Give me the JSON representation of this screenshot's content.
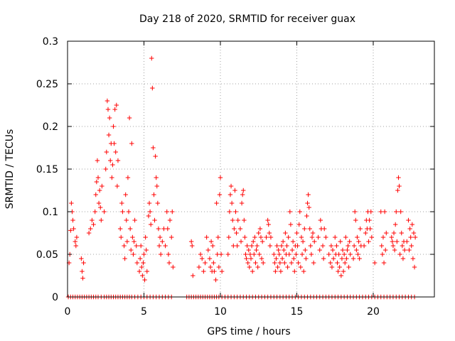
{
  "chart_data": {
    "type": "scatter",
    "title": "Day 218 of 2020, SRMTID for receiver guax",
    "xlabel": "GPS time / hours",
    "ylabel": "SRMTID / TECUs",
    "xlim": [
      0,
      24
    ],
    "ylim": [
      0,
      0.3
    ],
    "grid": true,
    "marker": "+",
    "color": "#ff0000",
    "x_ticks": [
      {
        "value": 0,
        "label": "0"
      },
      {
        "value": 5,
        "label": "5"
      },
      {
        "value": 10,
        "label": "10"
      },
      {
        "value": 15,
        "label": "15"
      },
      {
        "value": 20,
        "label": "20"
      }
    ],
    "y_ticks": [
      {
        "value": 0,
        "label": "0"
      },
      {
        "value": 0.05,
        "label": "0.05"
      },
      {
        "value": 0.1,
        "label": "0.1"
      },
      {
        "value": 0.15,
        "label": "0.15"
      },
      {
        "value": 0.2,
        "label": "0.2"
      },
      {
        "value": 0.25,
        "label": "0.25"
      },
      {
        "value": 0.3,
        "label": "0.3"
      }
    ],
    "points": [
      [
        0.1,
        0.04
      ],
      [
        0.15,
        0.05
      ],
      [
        0.2,
        0.078
      ],
      [
        0.25,
        0.11
      ],
      [
        0.3,
        0.1
      ],
      [
        0.35,
        0.09
      ],
      [
        0.4,
        0.08
      ],
      [
        0.5,
        0.065
      ],
      [
        0.55,
        0.06
      ],
      [
        0.6,
        0.07
      ],
      [
        0.9,
        0.045
      ],
      [
        0.95,
        0.03
      ],
      [
        1.0,
        0.022
      ],
      [
        1.05,
        0.04
      ],
      [
        1.4,
        0.075
      ],
      [
        1.5,
        0.08
      ],
      [
        1.6,
        0.09
      ],
      [
        1.7,
        0.085
      ],
      [
        1.8,
        0.1
      ],
      [
        1.85,
        0.12
      ],
      [
        1.9,
        0.135
      ],
      [
        1.95,
        0.16
      ],
      [
        2.0,
        0.14
      ],
      [
        2.05,
        0.11
      ],
      [
        2.1,
        0.125
      ],
      [
        2.15,
        0.105
      ],
      [
        2.2,
        0.09
      ],
      [
        2.25,
        0.13
      ],
      [
        2.4,
        0.1
      ],
      [
        2.5,
        0.15
      ],
      [
        2.55,
        0.17
      ],
      [
        2.6,
        0.23
      ],
      [
        2.65,
        0.22
      ],
      [
        2.7,
        0.19
      ],
      [
        2.75,
        0.21
      ],
      [
        2.8,
        0.16
      ],
      [
        2.85,
        0.18
      ],
      [
        2.9,
        0.14
      ],
      [
        2.95,
        0.155
      ],
      [
        3.0,
        0.2
      ],
      [
        3.05,
        0.18
      ],
      [
        3.1,
        0.22
      ],
      [
        3.15,
        0.17
      ],
      [
        3.2,
        0.225
      ],
      [
        3.25,
        0.13
      ],
      [
        3.3,
        0.16
      ],
      [
        3.45,
        0.08
      ],
      [
        3.5,
        0.07
      ],
      [
        3.55,
        0.11
      ],
      [
        3.6,
        0.1
      ],
      [
        3.7,
        0.06
      ],
      [
        3.75,
        0.045
      ],
      [
        3.8,
        0.12
      ],
      [
        3.85,
        0.09
      ],
      [
        3.9,
        0.065
      ],
      [
        3.95,
        0.14
      ],
      [
        4.0,
        0.1
      ],
      [
        4.05,
        0.21
      ],
      [
        4.1,
        0.08
      ],
      [
        4.15,
        0.055
      ],
      [
        4.2,
        0.18
      ],
      [
        4.25,
        0.07
      ],
      [
        4.3,
        0.05
      ],
      [
        4.35,
        0.065
      ],
      [
        4.4,
        0.09
      ],
      [
        4.5,
        0.06
      ],
      [
        4.55,
        0.04
      ],
      [
        4.7,
        0.03
      ],
      [
        4.75,
        0.045
      ],
      [
        4.8,
        0.06
      ],
      [
        4.85,
        0.035
      ],
      [
        4.9,
        0.025
      ],
      [
        4.95,
        0.04
      ],
      [
        5.0,
        0.05
      ],
      [
        5.05,
        0.02
      ],
      [
        5.1,
        0.07
      ],
      [
        5.15,
        0.055
      ],
      [
        5.2,
        0.03
      ],
      [
        5.3,
        0.095
      ],
      [
        5.35,
        0.11
      ],
      [
        5.4,
        0.1
      ],
      [
        5.45,
        0.085
      ],
      [
        5.5,
        0.28
      ],
      [
        5.55,
        0.245
      ],
      [
        5.6,
        0.175
      ],
      [
        5.65,
        0.12
      ],
      [
        5.7,
        0.09
      ],
      [
        5.75,
        0.165
      ],
      [
        5.8,
        0.14
      ],
      [
        5.85,
        0.13
      ],
      [
        5.9,
        0.11
      ],
      [
        5.95,
        0.08
      ],
      [
        6.0,
        0.06
      ],
      [
        6.05,
        0.07
      ],
      [
        6.1,
        0.05
      ],
      [
        6.2,
        0.065
      ],
      [
        6.3,
        0.08
      ],
      [
        6.4,
        0.06
      ],
      [
        6.5,
        0.1
      ],
      [
        6.55,
        0.08
      ],
      [
        6.6,
        0.05
      ],
      [
        6.65,
        0.04
      ],
      [
        6.7,
        0.09
      ],
      [
        6.8,
        0.07
      ],
      [
        6.85,
        0.1
      ],
      [
        6.9,
        0.035
      ],
      [
        8.1,
        0.065
      ],
      [
        8.15,
        0.06
      ],
      [
        8.2,
        0.025
      ],
      [
        8.6,
        0.035
      ],
      [
        8.7,
        0.05
      ],
      [
        8.8,
        0.045
      ],
      [
        8.9,
        0.03
      ],
      [
        9.0,
        0.04
      ],
      [
        9.1,
        0.07
      ],
      [
        9.2,
        0.055
      ],
      [
        9.3,
        0.045
      ],
      [
        9.35,
        0.035
      ],
      [
        9.4,
        0.065
      ],
      [
        9.45,
        0.03
      ],
      [
        9.5,
        0.06
      ],
      [
        9.55,
        0.04
      ],
      [
        9.6,
        0.03
      ],
      [
        9.7,
        0.02
      ],
      [
        9.75,
        0.11
      ],
      [
        9.8,
        0.05
      ],
      [
        9.85,
        0.07
      ],
      [
        9.9,
        0.035
      ],
      [
        9.95,
        0.12
      ],
      [
        10.0,
        0.14
      ],
      [
        10.05,
        0.05
      ],
      [
        10.1,
        0.03
      ],
      [
        10.5,
        0.05
      ],
      [
        10.55,
        0.07
      ],
      [
        10.6,
        0.1
      ],
      [
        10.65,
        0.12
      ],
      [
        10.7,
        0.13
      ],
      [
        10.75,
        0.11
      ],
      [
        10.8,
        0.09
      ],
      [
        10.85,
        0.06
      ],
      [
        10.9,
        0.08
      ],
      [
        10.95,
        0.125
      ],
      [
        11.0,
        0.1
      ],
      [
        11.05,
        0.075
      ],
      [
        11.1,
        0.06
      ],
      [
        11.15,
        0.09
      ],
      [
        11.3,
        0.08
      ],
      [
        11.35,
        0.065
      ],
      [
        11.4,
        0.11
      ],
      [
        11.45,
        0.12
      ],
      [
        11.5,
        0.125
      ],
      [
        11.55,
        0.09
      ],
      [
        11.6,
        0.07
      ],
      [
        11.65,
        0.05
      ],
      [
        11.7,
        0.045
      ],
      [
        11.75,
        0.06
      ],
      [
        11.8,
        0.04
      ],
      [
        11.85,
        0.055
      ],
      [
        11.9,
        0.035
      ],
      [
        11.95,
        0.05
      ],
      [
        12.0,
        0.045
      ],
      [
        12.05,
        0.06
      ],
      [
        12.1,
        0.03
      ],
      [
        12.15,
        0.065
      ],
      [
        12.2,
        0.05
      ],
      [
        12.25,
        0.07
      ],
      [
        12.3,
        0.04
      ],
      [
        12.35,
        0.055
      ],
      [
        12.4,
        0.06
      ],
      [
        12.45,
        0.035
      ],
      [
        12.5,
        0.075
      ],
      [
        12.55,
        0.05
      ],
      [
        12.6,
        0.08
      ],
      [
        12.65,
        0.07
      ],
      [
        12.7,
        0.045
      ],
      [
        12.75,
        0.065
      ],
      [
        12.8,
        0.04
      ],
      [
        13.0,
        0.07
      ],
      [
        13.1,
        0.09
      ],
      [
        13.15,
        0.085
      ],
      [
        13.2,
        0.075
      ],
      [
        13.25,
        0.06
      ],
      [
        13.3,
        0.07
      ],
      [
        13.5,
        0.05
      ],
      [
        13.55,
        0.04
      ],
      [
        13.6,
        0.03
      ],
      [
        13.65,
        0.045
      ],
      [
        13.7,
        0.06
      ],
      [
        13.75,
        0.035
      ],
      [
        13.8,
        0.055
      ],
      [
        13.85,
        0.05
      ],
      [
        13.9,
        0.04
      ],
      [
        13.95,
        0.03
      ],
      [
        14.0,
        0.06
      ],
      [
        14.05,
        0.045
      ],
      [
        14.1,
        0.065
      ],
      [
        14.15,
        0.055
      ],
      [
        14.2,
        0.04
      ],
      [
        14.25,
        0.075
      ],
      [
        14.3,
        0.05
      ],
      [
        14.35,
        0.06
      ],
      [
        14.4,
        0.035
      ],
      [
        14.45,
        0.07
      ],
      [
        14.5,
        0.05
      ],
      [
        14.55,
        0.1
      ],
      [
        14.6,
        0.085
      ],
      [
        14.65,
        0.04
      ],
      [
        14.7,
        0.055
      ],
      [
        14.75,
        0.065
      ],
      [
        14.8,
        0.045
      ],
      [
        14.85,
        0.03
      ],
      [
        14.9,
        0.06
      ],
      [
        14.95,
        0.05
      ],
      [
        15.0,
        0.075
      ],
      [
        15.05,
        0.06
      ],
      [
        15.1,
        0.04
      ],
      [
        15.15,
        0.085
      ],
      [
        15.2,
        0.1
      ],
      [
        15.25,
        0.035
      ],
      [
        15.3,
        0.07
      ],
      [
        15.35,
        0.05
      ],
      [
        15.4,
        0.065
      ],
      [
        15.45,
        0.03
      ],
      [
        15.5,
        0.08
      ],
      [
        15.55,
        0.055
      ],
      [
        15.6,
        0.045
      ],
      [
        15.65,
        0.095
      ],
      [
        15.7,
        0.11
      ],
      [
        15.75,
        0.12
      ],
      [
        15.8,
        0.105
      ],
      [
        15.85,
        0.08
      ],
      [
        15.9,
        0.06
      ],
      [
        15.95,
        0.05
      ],
      [
        16.0,
        0.07
      ],
      [
        16.05,
        0.075
      ],
      [
        16.1,
        0.04
      ],
      [
        16.15,
        0.065
      ],
      [
        16.4,
        0.07
      ],
      [
        16.5,
        0.055
      ],
      [
        16.55,
        0.09
      ],
      [
        16.6,
        0.08
      ],
      [
        16.7,
        0.06
      ],
      [
        16.75,
        0.045
      ],
      [
        16.8,
        0.08
      ],
      [
        16.9,
        0.07
      ],
      [
        17.1,
        0.05
      ],
      [
        17.2,
        0.04
      ],
      [
        17.25,
        0.06
      ],
      [
        17.3,
        0.035
      ],
      [
        17.35,
        0.055
      ],
      [
        17.4,
        0.045
      ],
      [
        17.5,
        0.07
      ],
      [
        17.55,
        0.05
      ],
      [
        17.6,
        0.06
      ],
      [
        17.65,
        0.04
      ],
      [
        17.7,
        0.03
      ],
      [
        17.75,
        0.05
      ],
      [
        17.8,
        0.035
      ],
      [
        17.85,
        0.065
      ],
      [
        17.9,
        0.025
      ],
      [
        17.95,
        0.045
      ],
      [
        18.0,
        0.055
      ],
      [
        18.05,
        0.03
      ],
      [
        18.1,
        0.05
      ],
      [
        18.15,
        0.04
      ],
      [
        18.2,
        0.07
      ],
      [
        18.25,
        0.045
      ],
      [
        18.3,
        0.055
      ],
      [
        18.35,
        0.06
      ],
      [
        18.4,
        0.035
      ],
      [
        18.45,
        0.065
      ],
      [
        18.5,
        0.05
      ],
      [
        18.7,
        0.045
      ],
      [
        18.75,
        0.06
      ],
      [
        18.8,
        0.1
      ],
      [
        18.85,
        0.09
      ],
      [
        18.9,
        0.055
      ],
      [
        18.95,
        0.07
      ],
      [
        19.0,
        0.05
      ],
      [
        19.05,
        0.065
      ],
      [
        19.1,
        0.045
      ],
      [
        19.15,
        0.08
      ],
      [
        19.2,
        0.06
      ],
      [
        19.4,
        0.06
      ],
      [
        19.5,
        0.075
      ],
      [
        19.55,
        0.09
      ],
      [
        19.6,
        0.08
      ],
      [
        19.65,
        0.1
      ],
      [
        19.7,
        0.065
      ],
      [
        19.75,
        0.09
      ],
      [
        19.8,
        0.08
      ],
      [
        19.85,
        0.1
      ],
      [
        19.9,
        0.07
      ],
      [
        20.1,
        0.04
      ],
      [
        20.5,
        0.1
      ],
      [
        20.55,
        0.06
      ],
      [
        20.6,
        0.05
      ],
      [
        20.65,
        0.07
      ],
      [
        20.7,
        0.04
      ],
      [
        20.75,
        0.1
      ],
      [
        20.8,
        0.055
      ],
      [
        20.85,
        0.075
      ],
      [
        21.2,
        0.07
      ],
      [
        21.25,
        0.065
      ],
      [
        21.3,
        0.06
      ],
      [
        21.35,
        0.075
      ],
      [
        21.4,
        0.055
      ],
      [
        21.45,
        0.085
      ],
      [
        21.5,
        0.1
      ],
      [
        21.55,
        0.065
      ],
      [
        21.6,
        0.125
      ],
      [
        21.65,
        0.14
      ],
      [
        21.7,
        0.13
      ],
      [
        21.75,
        0.05
      ],
      [
        21.8,
        0.1
      ],
      [
        21.85,
        0.075
      ],
      [
        21.9,
        0.06
      ],
      [
        21.95,
        0.045
      ],
      [
        22.0,
        0.065
      ],
      [
        22.05,
        0.055
      ],
      [
        22.2,
        0.065
      ],
      [
        22.3,
        0.09
      ],
      [
        22.35,
        0.055
      ],
      [
        22.4,
        0.08
      ],
      [
        22.45,
        0.07
      ],
      [
        22.5,
        0.06
      ],
      [
        22.55,
        0.085
      ],
      [
        22.6,
        0.045
      ],
      [
        22.65,
        0.075
      ],
      [
        22.7,
        0.035
      ],
      [
        22.75,
        0.07
      ]
    ],
    "zero_points_x": [
      0.05,
      0.2,
      0.35,
      0.5,
      0.65,
      0.8,
      0.95,
      1.1,
      1.25,
      1.4,
      1.55,
      1.7,
      1.85,
      2.0,
      2.2,
      2.4,
      2.55,
      2.7,
      2.85,
      3.0,
      3.15,
      3.3,
      3.45,
      3.6,
      3.75,
      3.9,
      4.05,
      4.2,
      4.4,
      4.6,
      4.8,
      5.0,
      5.2,
      5.4,
      5.6,
      5.8,
      6.0,
      6.2,
      6.4,
      6.6,
      6.8,
      7.8,
      7.95,
      8.1,
      8.25,
      8.4,
      8.55,
      8.7,
      8.85,
      9.0,
      9.15,
      9.3,
      9.45,
      9.6,
      9.75,
      9.9,
      10.1,
      10.3,
      10.5,
      10.7,
      10.9,
      11.1,
      11.3,
      11.5,
      11.7,
      11.9,
      12.1,
      12.3,
      12.5,
      12.7,
      12.9,
      13.1,
      13.3,
      13.5,
      13.7,
      13.9,
      14.1,
      14.3,
      14.5,
      14.7,
      14.9,
      15.1,
      15.3,
      15.5,
      15.7,
      15.9,
      16.1,
      16.3,
      16.5,
      16.7,
      16.9,
      17.1,
      17.3,
      17.5,
      17.7,
      17.9,
      18.1,
      18.3,
      18.5,
      18.7,
      18.9,
      19.1,
      19.3,
      19.5,
      19.7,
      19.9,
      20.1,
      20.3,
      20.5,
      20.7,
      20.9,
      21.1,
      21.3,
      21.5,
      21.7,
      21.9,
      22.1,
      22.3,
      22.5,
      22.7
    ]
  }
}
